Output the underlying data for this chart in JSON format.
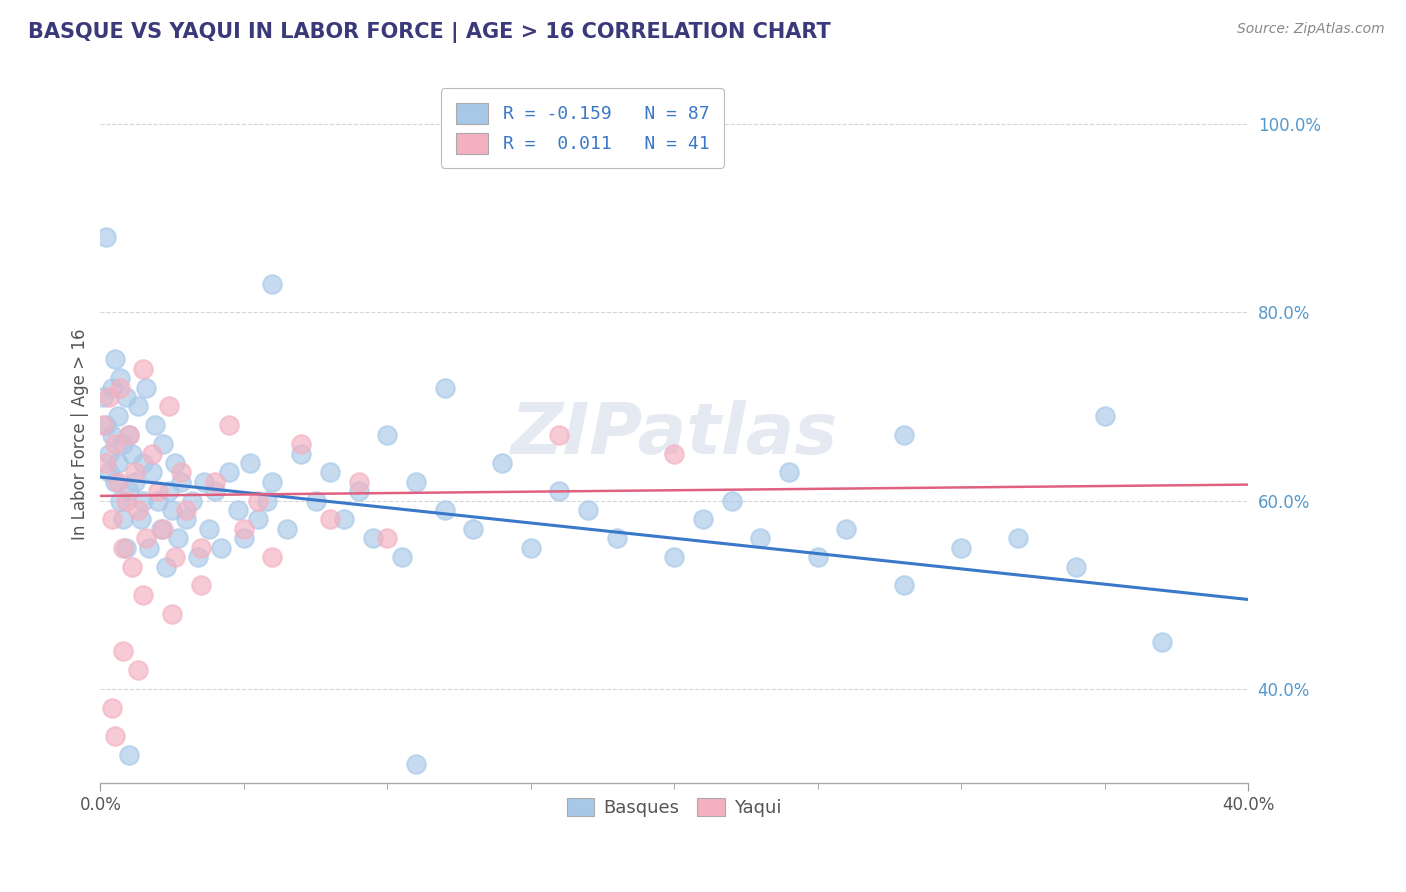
{
  "title": "BASQUE VS YAQUI IN LABOR FORCE | AGE > 16 CORRELATION CHART",
  "source": "Source: ZipAtlas.com",
  "ylabel": "In Labor Force | Age > 16",
  "legend_labels": [
    "Basques",
    "Yaqui"
  ],
  "basque_color": "#a8c8e8",
  "yaqui_color": "#f4b0c0",
  "basque_line_color": "#3a78c9",
  "yaqui_line_color": "#e06080",
  "R_basque": -0.159,
  "N_basque": 87,
  "R_yaqui": 0.011,
  "N_yaqui": 41,
  "xmin": 0.0,
  "xmax": 0.4,
  "ymin": 0.3,
  "ymax": 1.04,
  "grid_color": "#cccccc",
  "background_color": "#ffffff",
  "title_color": "#3a3a7a",
  "title_fontsize": 15,
  "legend_r_color": "#3a78c9",
  "basque_line_y0": 0.625,
  "basque_line_y1": 0.495,
  "yaqui_line_y0": 0.605,
  "yaqui_line_y1": 0.617,
  "ytick_labels": [
    "40.0%",
    "60.0%",
    "80.0%",
    "100.0%"
  ],
  "ytick_values": [
    0.4,
    0.6,
    0.8,
    1.0
  ],
  "xtick_major_labels": [
    "0.0%",
    "40.0%"
  ],
  "xtick_major_values": [
    0.0,
    0.4
  ],
  "xtick_minor_values": [
    0.05,
    0.1,
    0.15,
    0.2,
    0.25,
    0.3,
    0.35
  ],
  "watermark": "ZIPatlas",
  "basque_points": [
    [
      0.001,
      0.71
    ],
    [
      0.002,
      0.68
    ],
    [
      0.003,
      0.65
    ],
    [
      0.003,
      0.63
    ],
    [
      0.004,
      0.72
    ],
    [
      0.004,
      0.67
    ],
    [
      0.005,
      0.75
    ],
    [
      0.005,
      0.62
    ],
    [
      0.006,
      0.69
    ],
    [
      0.006,
      0.64
    ],
    [
      0.007,
      0.73
    ],
    [
      0.007,
      0.6
    ],
    [
      0.008,
      0.66
    ],
    [
      0.008,
      0.58
    ],
    [
      0.009,
      0.71
    ],
    [
      0.009,
      0.55
    ],
    [
      0.01,
      0.67
    ],
    [
      0.01,
      0.61
    ],
    [
      0.011,
      0.65
    ],
    [
      0.012,
      0.62
    ],
    [
      0.013,
      0.7
    ],
    [
      0.014,
      0.58
    ],
    [
      0.015,
      0.64
    ],
    [
      0.015,
      0.6
    ],
    [
      0.016,
      0.72
    ],
    [
      0.017,
      0.55
    ],
    [
      0.018,
      0.63
    ],
    [
      0.019,
      0.68
    ],
    [
      0.02,
      0.6
    ],
    [
      0.021,
      0.57
    ],
    [
      0.022,
      0.66
    ],
    [
      0.023,
      0.53
    ],
    [
      0.024,
      0.61
    ],
    [
      0.025,
      0.59
    ],
    [
      0.026,
      0.64
    ],
    [
      0.027,
      0.56
    ],
    [
      0.028,
      0.62
    ],
    [
      0.03,
      0.58
    ],
    [
      0.032,
      0.6
    ],
    [
      0.034,
      0.54
    ],
    [
      0.036,
      0.62
    ],
    [
      0.038,
      0.57
    ],
    [
      0.04,
      0.61
    ],
    [
      0.042,
      0.55
    ],
    [
      0.045,
      0.63
    ],
    [
      0.048,
      0.59
    ],
    [
      0.05,
      0.56
    ],
    [
      0.052,
      0.64
    ],
    [
      0.055,
      0.58
    ],
    [
      0.058,
      0.6
    ],
    [
      0.06,
      0.62
    ],
    [
      0.065,
      0.57
    ],
    [
      0.07,
      0.65
    ],
    [
      0.075,
      0.6
    ],
    [
      0.08,
      0.63
    ],
    [
      0.085,
      0.58
    ],
    [
      0.09,
      0.61
    ],
    [
      0.095,
      0.56
    ],
    [
      0.1,
      0.67
    ],
    [
      0.105,
      0.54
    ],
    [
      0.11,
      0.62
    ],
    [
      0.12,
      0.59
    ],
    [
      0.13,
      0.57
    ],
    [
      0.14,
      0.64
    ],
    [
      0.15,
      0.55
    ],
    [
      0.16,
      0.61
    ],
    [
      0.17,
      0.59
    ],
    [
      0.18,
      0.56
    ],
    [
      0.2,
      0.54
    ],
    [
      0.21,
      0.58
    ],
    [
      0.22,
      0.6
    ],
    [
      0.23,
      0.56
    ],
    [
      0.24,
      0.63
    ],
    [
      0.25,
      0.54
    ],
    [
      0.26,
      0.57
    ],
    [
      0.28,
      0.51
    ],
    [
      0.3,
      0.55
    ],
    [
      0.32,
      0.56
    ],
    [
      0.34,
      0.53
    ],
    [
      0.002,
      0.88
    ],
    [
      0.06,
      0.83
    ],
    [
      0.12,
      0.72
    ],
    [
      0.28,
      0.67
    ],
    [
      0.35,
      0.69
    ],
    [
      0.01,
      0.33
    ],
    [
      0.11,
      0.32
    ],
    [
      0.37,
      0.45
    ]
  ],
  "yaqui_points": [
    [
      0.001,
      0.68
    ],
    [
      0.002,
      0.64
    ],
    [
      0.003,
      0.71
    ],
    [
      0.004,
      0.58
    ],
    [
      0.005,
      0.66
    ],
    [
      0.006,
      0.62
    ],
    [
      0.007,
      0.72
    ],
    [
      0.008,
      0.55
    ],
    [
      0.009,
      0.6
    ],
    [
      0.01,
      0.67
    ],
    [
      0.011,
      0.53
    ],
    [
      0.012,
      0.63
    ],
    [
      0.013,
      0.59
    ],
    [
      0.015,
      0.74
    ],
    [
      0.016,
      0.56
    ],
    [
      0.018,
      0.65
    ],
    [
      0.02,
      0.61
    ],
    [
      0.022,
      0.57
    ],
    [
      0.024,
      0.7
    ],
    [
      0.026,
      0.54
    ],
    [
      0.028,
      0.63
    ],
    [
      0.03,
      0.59
    ],
    [
      0.035,
      0.55
    ],
    [
      0.04,
      0.62
    ],
    [
      0.045,
      0.68
    ],
    [
      0.05,
      0.57
    ],
    [
      0.055,
      0.6
    ],
    [
      0.06,
      0.54
    ],
    [
      0.07,
      0.66
    ],
    [
      0.08,
      0.58
    ],
    [
      0.09,
      0.62
    ],
    [
      0.1,
      0.56
    ],
    [
      0.004,
      0.38
    ],
    [
      0.008,
      0.44
    ],
    [
      0.015,
      0.5
    ],
    [
      0.025,
      0.48
    ],
    [
      0.035,
      0.51
    ],
    [
      0.005,
      0.35
    ],
    [
      0.013,
      0.42
    ],
    [
      0.2,
      0.65
    ],
    [
      0.16,
      0.67
    ]
  ]
}
